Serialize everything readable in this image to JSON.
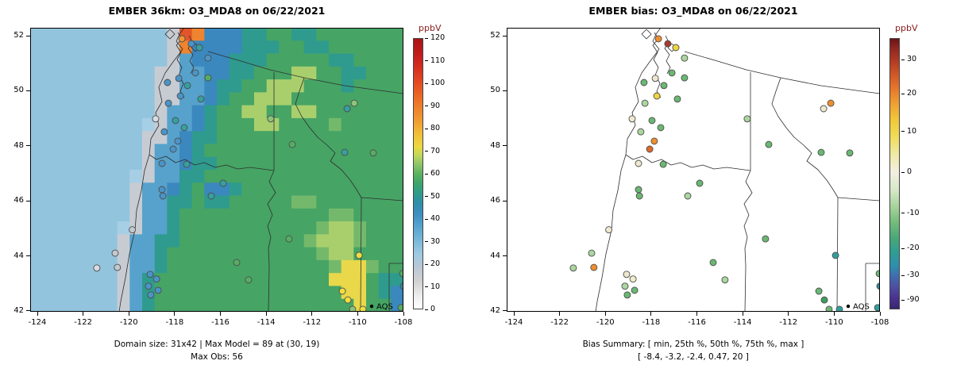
{
  "meta": {
    "aqs_label": "AQS",
    "aqs": {
      "lon": -109.39,
      "lat": 42.17
    },
    "units_color": "#8b1a1a",
    "point_edge_color": "#4d4d4d",
    "map_line_color": "#2f2f2f",
    "background": "#ffffff"
  },
  "axes": {
    "x_ticks": [
      -124,
      -122,
      -120,
      -118,
      -116,
      -114,
      -112,
      -110,
      -108
    ],
    "y_ticks": [
      42,
      44,
      46,
      48,
      50,
      52
    ],
    "xlim": [
      -124.3125,
      -108.0
    ],
    "ylim": [
      41.97,
      52.29
    ]
  },
  "stations": [
    {
      "lon": -117.68,
      "lat": 51.89,
      "model": "#f0962e",
      "bias": "#ef8e2e"
    },
    {
      "lon": -117.27,
      "lat": 51.71,
      "model": "#4a94c8",
      "bias": "#a63a30"
    },
    {
      "lon": -116.92,
      "lat": 51.57,
      "model": "#35a0a0",
      "bias": "#f0d53c"
    },
    {
      "lon": -116.54,
      "lat": 51.19,
      "model": "#4a94c8",
      "bias": "#abd6a0"
    },
    {
      "lon": -117.09,
      "lat": 50.65,
      "model": "#4a94c8",
      "bias": "#6ab873"
    },
    {
      "lon": -117.82,
      "lat": 50.45,
      "model": "#4a94c8",
      "bias": "#efe8d0"
    },
    {
      "lon": -118.31,
      "lat": 50.3,
      "model": "#4a94c8",
      "bias": "#6ab873"
    },
    {
      "lon": -117.44,
      "lat": 50.19,
      "model": "#35a0a0",
      "bias": "#6ab873"
    },
    {
      "lon": -117.75,
      "lat": 49.81,
      "model": "#4a94c8",
      "bias": "#f0d53c"
    },
    {
      "lon": -116.85,
      "lat": 49.7,
      "model": "#35a0a0",
      "bias": "#6ab873"
    },
    {
      "lon": -116.54,
      "lat": 50.47,
      "model": "#55ad62",
      "bias": "#6ab873"
    },
    {
      "lon": -118.27,
      "lat": 49.55,
      "model": "#4a94c8",
      "bias": "#abd6a0"
    },
    {
      "lon": -118.83,
      "lat": 48.98,
      "model": "#d9dde2",
      "bias": "#efe8d0"
    },
    {
      "lon": -117.96,
      "lat": 48.92,
      "model": "#35a0a0",
      "bias": "#6ab873"
    },
    {
      "lon": -117.58,
      "lat": 48.66,
      "model": "#35a0a0",
      "bias": "#6ab873"
    },
    {
      "lon": -118.45,
      "lat": 48.51,
      "model": "#4a94c8",
      "bias": "#abd6a0"
    },
    {
      "lon": -117.86,
      "lat": 48.17,
      "model": "#4a94c8",
      "bias": "#ef8e2e"
    },
    {
      "lon": -118.06,
      "lat": 47.88,
      "model": "#4a94c8",
      "bias": "#e0682a"
    },
    {
      "lon": -118.55,
      "lat": 47.36,
      "model": "#4a94c8",
      "bias": "#efe8d0"
    },
    {
      "lon": -117.47,
      "lat": 47.33,
      "model": "#35a0a0",
      "bias": "#6ab873"
    },
    {
      "lon": -115.88,
      "lat": 46.64,
      "model": "#35a0a0",
      "bias": "#6ab873"
    },
    {
      "lon": -116.4,
      "lat": 46.18,
      "model": "#35a0a0",
      "bias": "#abd6a0"
    },
    {
      "lon": -118.55,
      "lat": 46.41,
      "model": "#4a94c8",
      "bias": "#6ab873"
    },
    {
      "lon": -118.51,
      "lat": 46.18,
      "model": "#4a94c8",
      "bias": "#6ab873"
    },
    {
      "lon": -120.5,
      "lat": 43.58,
      "model": "#c3c9d0",
      "bias": "#ef8e2e"
    },
    {
      "lon": -121.4,
      "lat": 43.56,
      "model": "#d9dde2",
      "bias": "#abd6a0"
    },
    {
      "lon": -119.07,
      "lat": 43.33,
      "model": "#4a94c8",
      "bias": "#efe8d0"
    },
    {
      "lon": -118.79,
      "lat": 43.16,
      "model": "#4a94c8",
      "bias": "#f2ecc8"
    },
    {
      "lon": -119.14,
      "lat": 42.9,
      "model": "#4a94c8",
      "bias": "#abd6a0"
    },
    {
      "lon": -118.72,
      "lat": 42.75,
      "model": "#4a94c8",
      "bias": "#6ab873"
    },
    {
      "lon": -119.04,
      "lat": 42.58,
      "model": "#4a94c8",
      "bias": "#6ab873"
    },
    {
      "lon": -115.29,
      "lat": 43.76,
      "model": "#55ad62",
      "bias": "#6ab873"
    },
    {
      "lon": -114.77,
      "lat": 43.13,
      "model": "#55ad62",
      "bias": "#abd6a0"
    },
    {
      "lon": -113.8,
      "lat": 48.98,
      "model": "#8cc579",
      "bias": "#abd6a0"
    },
    {
      "lon": -112.86,
      "lat": 48.05,
      "model": "#55ad62",
      "bias": "#6ab873"
    },
    {
      "lon": -110.46,
      "lat": 49.35,
      "model": "#35a0a0",
      "bias": "#efe8d0"
    },
    {
      "lon": -110.57,
      "lat": 47.76,
      "model": "#35a0a0",
      "bias": "#6ab873"
    },
    {
      "lon": -109.32,
      "lat": 47.74,
      "model": "#55ad62",
      "bias": "#6ab873"
    },
    {
      "lon": -110.15,
      "lat": 49.55,
      "model": "#8cc579",
      "bias": "#ef8e2e"
    },
    {
      "lon": -109.94,
      "lat": 44.02,
      "model": "#f0df3e",
      "bias": "#319e9e"
    },
    {
      "lon": -110.67,
      "lat": 42.72,
      "model": "#f0df3e",
      "bias": "#6ab873"
    },
    {
      "lon": -110.43,
      "lat": 42.4,
      "model": "#f0df3e",
      "bias": "#3f9e5e"
    },
    {
      "lon": -109.77,
      "lat": 42.06,
      "model": "#f0df3e",
      "bias": "#319e9e"
    },
    {
      "lon": -110.22,
      "lat": 42.06,
      "model": "#8cc579",
      "bias": "#6ab873"
    },
    {
      "lon": -108.03,
      "lat": 43.36,
      "model": "#55ad62",
      "bias": "#6ab873"
    },
    {
      "lon": -108.0,
      "lat": 42.9,
      "model": "#2f8fa0",
      "bias": "#2f8fa0"
    },
    {
      "lon": -108.1,
      "lat": 42.12,
      "model": "#55ad62",
      "bias": "#319e9e"
    },
    {
      "lon": -113.0,
      "lat": 44.62,
      "model": "#55ad62",
      "bias": "#6ab873"
    },
    {
      "lon": -119.85,
      "lat": 44.95,
      "model": "#c3c9d0",
      "bias": "#efe8d0"
    },
    {
      "lon": -120.6,
      "lat": 44.1,
      "model": "#c3c9d0",
      "bias": "#abd6a0"
    }
  ],
  "chart_data": [
    {
      "type": "heatmap",
      "panel": "left",
      "title": "EMBER 36km: O3_MDA8 on 06/22/2021",
      "units": "ppbV",
      "caption_lines": [
        "Domain size: 31x42 | Max Model = 89 at (30, 19)",
        "Max Obs: 56"
      ],
      "domain_size": "31x42",
      "max_model": 89,
      "max_model_at": [
        30,
        19
      ],
      "max_obs": 56,
      "colorbar": {
        "label": "ppbV",
        "min": 0,
        "max": 120,
        "ticks": [
          0,
          10,
          20,
          30,
          40,
          50,
          60,
          70,
          80,
          90,
          100,
          110,
          120
        ],
        "stops": [
          [
            0,
            "#ffffff"
          ],
          [
            6,
            "#ececec"
          ],
          [
            12,
            "#d2d2d2"
          ],
          [
            18,
            "#bcc8d4"
          ],
          [
            24,
            "#9fc9e2"
          ],
          [
            30,
            "#7cb9da"
          ],
          [
            36,
            "#59a5cf"
          ],
          [
            42,
            "#3c8fc0"
          ],
          [
            47,
            "#2f8fa8"
          ],
          [
            52,
            "#2f9e85"
          ],
          [
            56,
            "#3fa569"
          ],
          [
            60,
            "#5bb35e"
          ],
          [
            64,
            "#8ac46a"
          ],
          [
            68,
            "#bed75c"
          ],
          [
            72,
            "#ecd93f"
          ],
          [
            78,
            "#f2bc38"
          ],
          [
            84,
            "#f09a30"
          ],
          [
            92,
            "#ec7428"
          ],
          [
            100,
            "#e44d22"
          ],
          [
            108,
            "#d42a1e"
          ],
          [
            114,
            "#c01a1a"
          ],
          [
            120,
            "#a81515"
          ]
        ]
      },
      "raster": {
        "ncols": 30,
        "nrows": 22,
        "palette": {
          "o": "#93c4de",
          "p": "#a6cfe6",
          "g": "#c7ccd3",
          "b": "#56a2cc",
          "d": "#3a88be",
          "t": "#2f9b8e",
          "n": "#46a465",
          "m": "#74b96b",
          "l": "#a9cf6d",
          "Y": "#e8d84a",
          "r": "#ee8430",
          "R": "#e2552a"
        },
        "rows": [
          "ooooooooooogRrdddttnnttnnnnnnn",
          "ooooooooooogrddddtttnnttnnnnnn",
          "ooooooooooogbdddtttnnnnnttnnnn",
          "ooooooooooggbbddttnnnllnnttnnn",
          "ooooooooooggbbdttnnlllnnntnnnn",
          "ooooooooooggbbdtnnlllnnnnnnnnn",
          "oooooooooogbbdtnnllnnllnnnnnnn",
          "ooooooooopgbbdtnnnllnnnnmnnnnn",
          "oooooooooggbdttnnnnnnnnnnnnnnn",
          "ooooooooogbbdtnnnnnnnnnnnnnnnn",
          "ooooooooogbbdttnnnnnnnnnnnnnnn",
          "oooooooopgbbttnnnnnnnnnnnnnnnn",
          "oooooooogbbdtnddtnnnnnnnnnnnnn",
          "oooooooogbbttnttnnnnnmmnnnnnnn",
          "oooooooogbbtnnnnnnnnnnnnmmnnnn",
          "ooooooopgbbtnnnnnnnnnnnmllmnnn",
          "ooooooogbbttnnnnnnnnnnmlllmnnn",
          "ooooooogbbtnnnnnnnnnnnnmllnnnn",
          "ooooooogbbtnnnnnnnnnnnnnmYYmnn",
          "ooooooogbtnnnnnnnnnnnnnnYYYntt",
          "ooooooogbtnnnnnnnnnnnnnnnYYntd",
          "ooooooogbtnnnnnnnnnnnnnnnnYnnd"
        ]
      }
    },
    {
      "type": "scatter",
      "panel": "right",
      "title": "EMBER bias: O3_MDA8 on 06/22/2021",
      "units": "ppbV",
      "caption_lines": [
        "Bias Summary: [ min, 25th %, 50th %, 75th %, max ]",
        "[ -8.4,  -3.2,  -2.4,  0.47,  20 ]"
      ],
      "bias_summary": {
        "min": -8.4,
        "p25": -3.2,
        "median": -2.4,
        "p75": 0.47,
        "max": 20
      },
      "colorbar": {
        "label": "ppbV",
        "ticks": [
          30,
          20,
          10,
          0,
          -10,
          -20,
          -30,
          -90
        ],
        "tick_pos": [
          0.08,
          0.205,
          0.345,
          0.495,
          0.645,
          0.775,
          0.875,
          0.965
        ],
        "stops": [
          [
            0.0,
            "#6b1414"
          ],
          [
            0.03,
            "#8c2420"
          ],
          [
            0.08,
            "#b03a24"
          ],
          [
            0.13,
            "#d05626"
          ],
          [
            0.18,
            "#e4742a"
          ],
          [
            0.24,
            "#efa032"
          ],
          [
            0.3,
            "#f2c738"
          ],
          [
            0.36,
            "#f0dc56"
          ],
          [
            0.43,
            "#efe9a8"
          ],
          [
            0.495,
            "#f2efe2"
          ],
          [
            0.56,
            "#d6e8c8"
          ],
          [
            0.62,
            "#a8d49c"
          ],
          [
            0.68,
            "#74bc7c"
          ],
          [
            0.74,
            "#47a878"
          ],
          [
            0.79,
            "#2f9e92"
          ],
          [
            0.84,
            "#2f8fae"
          ],
          [
            0.88,
            "#3f6cb0"
          ],
          [
            0.92,
            "#4d4fa0"
          ],
          [
            0.96,
            "#4a3390"
          ],
          [
            1.0,
            "#38256e"
          ]
        ]
      }
    }
  ]
}
